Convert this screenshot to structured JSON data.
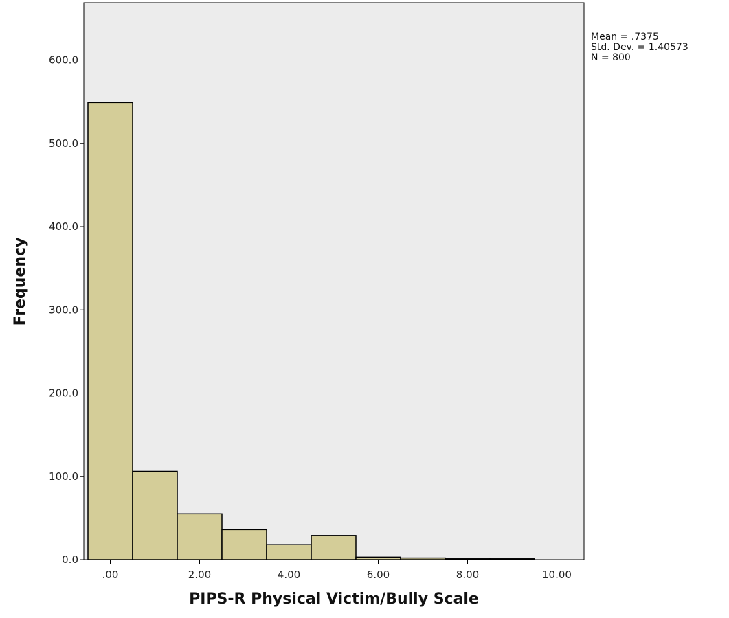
{
  "chart_data": {
    "type": "bar",
    "subtype": "histogram",
    "xlabel": "PIPS-R Physical Victim/Bully Scale",
    "ylabel": "Frequency",
    "xlim": [
      -0.5,
      10.5
    ],
    "ylim": [
      0,
      660
    ],
    "x_ticks": [
      0,
      2,
      4,
      6,
      8,
      10
    ],
    "x_tick_labels": [
      ".00",
      "2.00",
      "4.00",
      "6.00",
      "8.00",
      "10.00"
    ],
    "y_ticks": [
      0,
      100,
      200,
      300,
      400,
      500,
      600
    ],
    "y_tick_labels": [
      "0.0",
      "100.0",
      "200.0",
      "300.0",
      "400.0",
      "500.0",
      "600.0"
    ],
    "bins": [
      {
        "from": -0.5,
        "to": 0.5,
        "count": 549
      },
      {
        "from": 0.5,
        "to": 1.5,
        "count": 106
      },
      {
        "from": 1.5,
        "to": 2.5,
        "count": 55
      },
      {
        "from": 2.5,
        "to": 3.5,
        "count": 36
      },
      {
        "from": 3.5,
        "to": 4.5,
        "count": 18
      },
      {
        "from": 4.5,
        "to": 5.5,
        "count": 29
      },
      {
        "from": 5.5,
        "to": 6.5,
        "count": 3
      },
      {
        "from": 6.5,
        "to": 7.5,
        "count": 2
      },
      {
        "from": 7.5,
        "to": 8.5,
        "count": 1
      },
      {
        "from": 8.5,
        "to": 9.5,
        "count": 1
      }
    ],
    "stats": {
      "mean": "Mean = .7375",
      "std": "Std. Dev. = 1.40573",
      "n": "N = 800"
    },
    "colors": {
      "plot_background": "#ececec",
      "bar_fill": "#d4cd98",
      "bar_stroke": "#000000"
    },
    "grid": false,
    "legend": "none"
  }
}
